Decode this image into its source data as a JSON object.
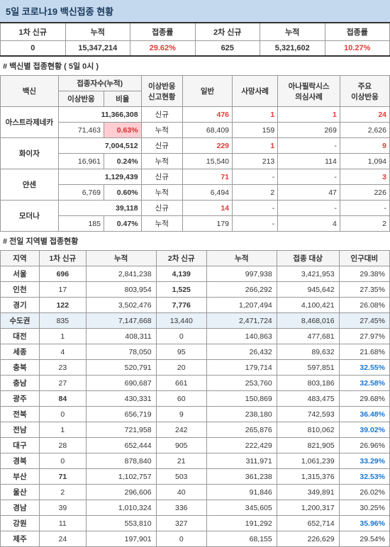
{
  "title": "5일    코로나19 백신접종 현황",
  "summary": {
    "headers": [
      "1차 신규",
      "누적",
      "접종률",
      "2차 신규",
      "누적",
      "접종률"
    ],
    "row": [
      "0",
      "15,347,214",
      "29.62%",
      "625",
      "5,321,602",
      "10.27%"
    ],
    "rate1_color": "#d32f2f",
    "rate2_color": "#d32f2f"
  },
  "vaccine_section_title": "# 백신별 접종현황 ( 5일 0시 )",
  "vaccine_headers": {
    "vaccine": "백신",
    "count_cum": "접종자수(누적)",
    "adverse": "이상반응",
    "ratio": "비율",
    "adverse_status": "이상반응\n신고현황",
    "general": "일반",
    "death": "사망사례",
    "ana": "아나필락시스\n의심사례",
    "major": "주요\n이상반응"
  },
  "vaccines": [
    {
      "name": "아스트라제네카",
      "count": "11,366,308",
      "adverse_count": "71,463",
      "ratio": "0.63%",
      "hl": true,
      "new": [
        "신규",
        "476",
        "1",
        "1",
        "24"
      ],
      "cum": [
        "누적",
        "68,409",
        "159",
        "269",
        "2,626"
      ]
    },
    {
      "name": "화이자",
      "count": "7,004,512",
      "adverse_count": "16,961",
      "ratio": "0.24%",
      "new": [
        "신규",
        "229",
        "1",
        "-",
        "9"
      ],
      "cum": [
        "누적",
        "15,540",
        "213",
        "114",
        "1,094"
      ]
    },
    {
      "name": "얀센",
      "count": "1,129,439",
      "adverse_count": "6,769",
      "ratio": "0.60%",
      "new": [
        "신규",
        "71",
        "-",
        "-",
        "3"
      ],
      "cum": [
        "누적",
        "6,494",
        "2",
        "47",
        "226"
      ]
    },
    {
      "name": "모더나",
      "count": "39,118",
      "adverse_count": "185",
      "ratio": "0.47%",
      "new": [
        "신규",
        "14",
        "-",
        "-",
        "-"
      ],
      "cum": [
        "누적",
        "179",
        "-",
        "4",
        "2"
      ]
    }
  ],
  "region_section_title": "# 전일 지역별 접종현황",
  "region_headers": [
    "지역",
    "1차 신규",
    "누적",
    "2차 신규",
    "누적",
    "접종 대상",
    "인구대비"
  ],
  "regions": [
    {
      "name": "서울",
      "d1": "696",
      "c1": "2,841,238",
      "d2": "4,139",
      "c2": "997,938",
      "target": "3,421,953",
      "ratio": "29.38%",
      "d1b": true,
      "d2b": true
    },
    {
      "name": "인천",
      "d1": "17",
      "c1": "803,954",
      "d2": "1,525",
      "c2": "266,292",
      "target": "945,642",
      "ratio": "27.35%",
      "d2b": true
    },
    {
      "name": "경기",
      "d1": "122",
      "c1": "3,502,476",
      "d2": "7,776",
      "c2": "1,207,494",
      "target": "4,100,421",
      "ratio": "26.08%",
      "d1b": true,
      "d2b": true
    },
    {
      "name": "수도권",
      "d1": "835",
      "c1": "7,147,668",
      "d2": "13,440",
      "c2": "2,471,724",
      "target": "8,468,016",
      "ratio": "27.45%",
      "hl": true
    },
    {
      "name": "대전",
      "d1": "1",
      "c1": "408,311",
      "d2": "0",
      "c2": "140,863",
      "target": "477,681",
      "ratio": "27.97%"
    },
    {
      "name": "세종",
      "d1": "4",
      "c1": "78,050",
      "d2": "95",
      "c2": "26,432",
      "target": "89,632",
      "ratio": "21.68%"
    },
    {
      "name": "충북",
      "d1": "23",
      "c1": "520,791",
      "d2": "20",
      "c2": "179,714",
      "target": "597,851",
      "ratio": "32.55%",
      "rb": true
    },
    {
      "name": "충남",
      "d1": "27",
      "c1": "690,687",
      "d2": "661",
      "c2": "253,760",
      "target": "803,186",
      "ratio": "32.58%",
      "rb": true
    },
    {
      "name": "광주",
      "d1": "84",
      "c1": "430,331",
      "d2": "60",
      "c2": "150,869",
      "target": "483,475",
      "ratio": "29.68%",
      "d1b": true
    },
    {
      "name": "전북",
      "d1": "0",
      "c1": "656,719",
      "d2": "9",
      "c2": "238,180",
      "target": "742,593",
      "ratio": "36.48%",
      "rb": true
    },
    {
      "name": "전남",
      "d1": "1",
      "c1": "721,958",
      "d2": "242",
      "c2": "265,876",
      "target": "810,062",
      "ratio": "39.02%",
      "rb": true
    },
    {
      "name": "대구",
      "d1": "28",
      "c1": "652,444",
      "d2": "905",
      "c2": "222,429",
      "target": "821,905",
      "ratio": "26.96%"
    },
    {
      "name": "경북",
      "d1": "0",
      "c1": "878,840",
      "d2": "21",
      "c2": "311,971",
      "target": "1,061,239",
      "ratio": "33.29%",
      "rb": true
    },
    {
      "name": "부산",
      "d1": "71",
      "c1": "1,102,757",
      "d2": "503",
      "c2": "361,238",
      "target": "1,315,376",
      "ratio": "32.53%",
      "d1b": true,
      "rb": true
    },
    {
      "name": "울산",
      "d1": "2",
      "c1": "296,606",
      "d2": "40",
      "c2": "91,846",
      "target": "349,891",
      "ratio": "26.02%"
    },
    {
      "name": "경남",
      "d1": "39",
      "c1": "1,010,324",
      "d2": "336",
      "c2": "345,605",
      "target": "1,200,317",
      "ratio": "30.25%"
    },
    {
      "name": "강원",
      "d1": "11",
      "c1": "553,810",
      "d2": "327",
      "c2": "191,292",
      "target": "652,714",
      "ratio": "35.96%",
      "rb": true
    },
    {
      "name": "제주",
      "d1": "24",
      "c1": "197,901",
      "d2": "0",
      "c2": "68,155",
      "target": "226,629",
      "ratio": "29.54%"
    }
  ]
}
